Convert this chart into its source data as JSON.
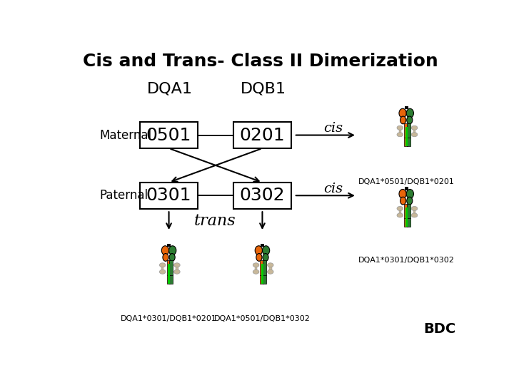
{
  "title": "Cis and Trans- Class II Dimerization",
  "title_fontsize": 18,
  "background_color": "#ffffff",
  "label_dqa1": "DQA1",
  "label_dqb1": "DQB1",
  "label_maternal": "Maternal",
  "label_paternal": "Paternal",
  "label_trans": "trans",
  "label_cis": "cis",
  "box_maternal_dqa1": "0501",
  "box_maternal_dqb1": "0201",
  "box_paternal_dqa1": "0301",
  "box_paternal_dqb1": "0302",
  "caption_cis1": "DQA1*0501/DQB1*0201",
  "caption_cis2": "DQA1*0301/DQB1*0302",
  "caption_trans1": "DQA1*0301/DQB1*0201",
  "caption_trans2": "DQA1*0501/DQB1*0302",
  "caption_bdc": "BDC",
  "orange_color": "#E8650A",
  "green_color": "#2D7D32",
  "bright_green": "#00CC00",
  "box_color": "#ffffff",
  "box_edge_color": "#000000",
  "dumbbell_color": "#C8B89A",
  "dumbbell_edge": "#999999"
}
